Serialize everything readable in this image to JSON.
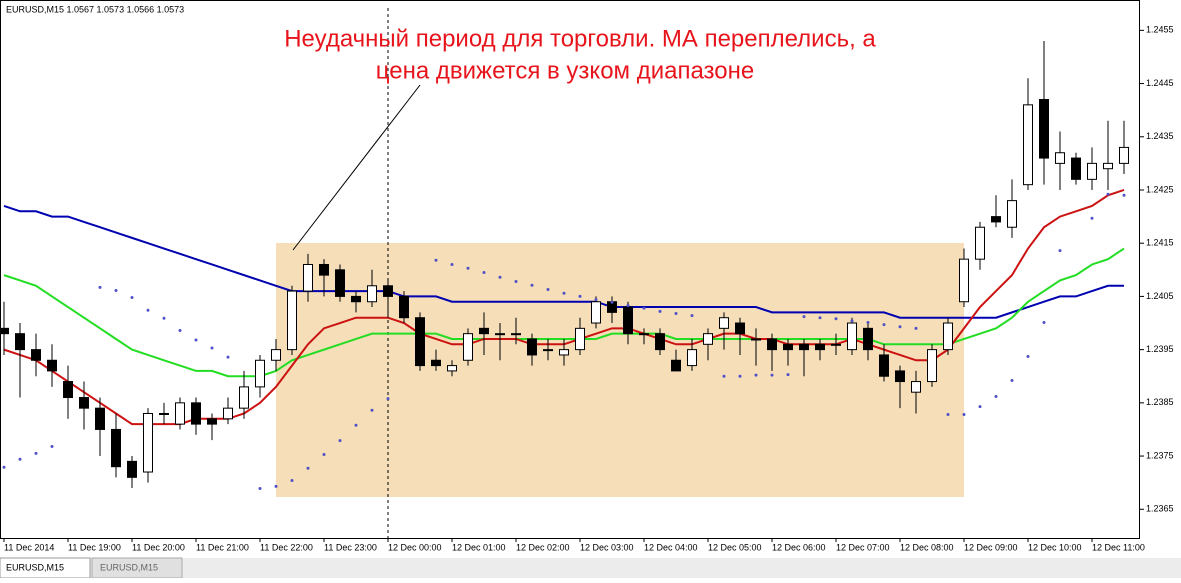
{
  "header": {
    "symbol_info": "EURUSD,M15  1.0567 1.0573 1.0566 1.0573"
  },
  "tabs": [
    "EURUSD,M15",
    "EURUSD,M15"
  ],
  "chart_data": {
    "type": "candlestick",
    "annotation": [
      "Неудачный период для торговли. МА переплелись, а",
      "цена движется в узком диапазоне"
    ],
    "categories": [
      "11 Dec 2014",
      null,
      null,
      null,
      "11 Dec 19:00",
      null,
      null,
      null,
      "11 Dec 20:00",
      null,
      null,
      null,
      "11 Dec 21:00",
      null,
      null,
      null,
      "11 Dec 22:00",
      null,
      null,
      null,
      "11 Dec 23:00",
      null,
      null,
      null,
      "12 Dec 00:00",
      null,
      null,
      null,
      "12 Dec 01:00",
      null,
      null,
      null,
      "12 Dec 02:00",
      null,
      null,
      null,
      "12 Dec 03:00",
      null,
      null,
      null,
      "12 Dec 04:00",
      null,
      null,
      null,
      "12 Dec 05:00",
      null,
      null,
      null,
      "12 Dec 06:00",
      null,
      null,
      null,
      "12 Dec 07:00",
      null,
      null,
      null,
      "12 Dec 08:00",
      null,
      null,
      null,
      "12 Dec 09:00",
      null,
      null,
      null,
      "12 Dec 10:00",
      null,
      null,
      null,
      "12 Dec 11:00",
      null,
      null
    ],
    "open": [
      1.2399,
      1.2398,
      1.2395,
      1.2393,
      1.2389,
      1.2386,
      1.2384,
      1.238,
      1.2374,
      1.2372,
      1.2383,
      1.2381,
      1.2385,
      1.2382,
      1.2382,
      1.2384,
      1.2388,
      1.2393,
      1.2395,
      1.2406,
      1.2411,
      1.241,
      1.2405,
      1.2404,
      1.2407,
      1.2405,
      1.2401,
      1.2393,
      1.2391,
      1.2393,
      1.2399,
      1.2398,
      1.2398,
      1.2397,
      1.2395,
      1.2394,
      1.2395,
      1.24,
      1.2404,
      1.2403,
      1.2398,
      1.2398,
      1.2393,
      1.2392,
      1.2396,
      1.2399,
      1.24,
      1.2397,
      1.2397,
      1.2396,
      1.2396,
      1.2396,
      1.2396,
      1.2395,
      1.2399,
      1.2394,
      1.2391,
      1.2387,
      1.2389,
      1.2395,
      1.2404,
      1.2412,
      1.242,
      1.2418,
      1.2426,
      1.2442,
      1.243,
      1.2431,
      1.2427,
      1.2429,
      1.243
    ],
    "high": [
      1.2404,
      1.24,
      1.2398,
      1.2396,
      1.2392,
      1.2389,
      1.2386,
      1.2383,
      1.2375,
      1.2384,
      1.2385,
      1.2386,
      1.2386,
      1.2383,
      1.2386,
      1.2391,
      1.2394,
      1.2397,
      1.2407,
      1.2413,
      1.2412,
      1.2411,
      1.2406,
      1.241,
      1.2408,
      1.2406,
      1.2402,
      1.2395,
      1.2393,
      1.2399,
      1.2402,
      1.24,
      1.2401,
      1.2398,
      1.2397,
      1.2397,
      1.2401,
      1.2405,
      1.2405,
      1.2404,
      1.2399,
      1.2399,
      1.2395,
      1.2397,
      1.2399,
      1.2402,
      1.2401,
      1.2399,
      1.2398,
      1.2397,
      1.2397,
      1.2397,
      1.2398,
      1.2401,
      1.24,
      1.2396,
      1.2392,
      1.2391,
      1.2396,
      1.2401,
      1.2414,
      1.2419,
      1.2424,
      1.2427,
      1.2446,
      1.2453,
      1.2436,
      1.2432,
      1.2433,
      1.2438,
      1.2438
    ],
    "low": [
      1.2394,
      1.2386,
      1.239,
      1.2388,
      1.2382,
      1.238,
      1.2375,
      1.2371,
      1.2369,
      1.237,
      1.2381,
      1.238,
      1.2379,
      1.2378,
      1.2381,
      1.2382,
      1.2386,
      1.2391,
      1.2394,
      1.2404,
      1.2405,
      1.2404,
      1.2402,
      1.2403,
      1.2401,
      1.24,
      1.2391,
      1.2391,
      1.239,
      1.2392,
      1.2394,
      1.2393,
      1.2396,
      1.2392,
      1.2393,
      1.2392,
      1.2394,
      1.2399,
      1.24,
      1.2396,
      1.2396,
      1.2394,
      1.2391,
      1.2391,
      1.2393,
      1.2395,
      1.2394,
      1.2392,
      1.2391,
      1.2392,
      1.239,
      1.2393,
      1.2394,
      1.2394,
      1.2393,
      1.2389,
      1.2384,
      1.2383,
      1.2388,
      1.2394,
      1.2403,
      1.241,
      1.2418,
      1.2416,
      1.2425,
      1.2426,
      1.2425,
      1.2426,
      1.2425,
      1.2425,
      1.2428
    ],
    "close": [
      1.2398,
      1.2395,
      1.2393,
      1.2391,
      1.2386,
      1.2384,
      1.238,
      1.2373,
      1.2371,
      1.2383,
      1.2383,
      1.2385,
      1.2381,
      1.2381,
      1.2384,
      1.2388,
      1.2393,
      1.2395,
      1.2406,
      1.2411,
      1.2409,
      1.2405,
      1.2404,
      1.2407,
      1.2405,
      1.2401,
      1.2392,
      1.2392,
      1.2392,
      1.2398,
      1.2398,
      1.2398,
      1.2398,
      1.2394,
      1.2395,
      1.2395,
      1.2399,
      1.2404,
      1.2402,
      1.2398,
      1.2398,
      1.2395,
      1.2391,
      1.2395,
      1.2398,
      1.2401,
      1.2398,
      1.2397,
      1.2395,
      1.2395,
      1.2395,
      1.2395,
      1.2396,
      1.24,
      1.2395,
      1.239,
      1.2389,
      1.2389,
      1.2395,
      1.24,
      1.2412,
      1.2418,
      1.2419,
      1.2423,
      1.2441,
      1.2431,
      1.2432,
      1.2427,
      1.243,
      1.243,
      1.2433
    ],
    "lines": [
      {
        "color": "#0000b0",
        "values": [
          1.2422,
          1.2421,
          1.2421,
          1.242,
          1.242,
          1.2419,
          1.2418,
          1.2417,
          1.2416,
          1.2415,
          1.2414,
          1.2413,
          1.2412,
          1.2411,
          1.241,
          1.2409,
          1.2408,
          1.2407,
          1.2406,
          1.2406,
          1.2406,
          1.2406,
          1.2406,
          1.2406,
          1.2406,
          1.2405,
          1.2405,
          1.2405,
          1.2404,
          1.2404,
          1.2404,
          1.2404,
          1.2404,
          1.2404,
          1.2404,
          1.2404,
          1.2404,
          1.2404,
          1.2403,
          1.2403,
          1.2403,
          1.2403,
          1.2403,
          1.2403,
          1.2403,
          1.2403,
          1.2403,
          1.2403,
          1.2402,
          1.2402,
          1.2402,
          1.2402,
          1.2402,
          1.2402,
          1.2402,
          1.2402,
          1.2401,
          1.2401,
          1.2401,
          1.2401,
          1.2401,
          1.2401,
          1.2401,
          1.2402,
          1.2403,
          1.2404,
          1.2405,
          1.2405,
          1.2406,
          1.2407,
          1.2407
        ]
      },
      {
        "color": "#22dd22",
        "values": [
          1.2409,
          1.2408,
          1.2407,
          1.2405,
          1.2403,
          1.2401,
          1.2399,
          1.2397,
          1.2395,
          1.2394,
          1.2393,
          1.2392,
          1.2391,
          1.2391,
          1.239,
          1.239,
          1.239,
          1.2391,
          1.2393,
          1.2394,
          1.2395,
          1.2396,
          1.2397,
          1.2398,
          1.2398,
          1.2398,
          1.2398,
          1.2398,
          1.2397,
          1.2397,
          1.2397,
          1.2397,
          1.2397,
          1.2397,
          1.2397,
          1.2397,
          1.2397,
          1.2397,
          1.2398,
          1.2398,
          1.2398,
          1.2398,
          1.2397,
          1.2397,
          1.2397,
          1.2397,
          1.2397,
          1.2397,
          1.2397,
          1.2397,
          1.2397,
          1.2397,
          1.2397,
          1.2397,
          1.2397,
          1.2396,
          1.2396,
          1.2396,
          1.2396,
          1.2396,
          1.2397,
          1.2398,
          1.2399,
          1.2401,
          1.2404,
          1.2406,
          1.2408,
          1.2409,
          1.2411,
          1.2412,
          1.2414
        ]
      },
      {
        "color": "#cc1111",
        "values": [
          1.2395,
          1.2394,
          1.2393,
          1.2391,
          1.2389,
          1.2387,
          1.2385,
          1.2383,
          1.2381,
          1.2381,
          1.2381,
          1.2381,
          1.2382,
          1.2382,
          1.2382,
          1.2383,
          1.2385,
          1.2388,
          1.2392,
          1.2396,
          1.2399,
          1.24,
          1.2401,
          1.2401,
          1.2401,
          1.24,
          1.2398,
          1.2397,
          1.2396,
          1.2396,
          1.2397,
          1.2397,
          1.2397,
          1.2396,
          1.2396,
          1.2396,
          1.2397,
          1.2398,
          1.2399,
          1.2399,
          1.2398,
          1.2397,
          1.2396,
          1.2396,
          1.2397,
          1.2398,
          1.2398,
          1.2397,
          1.2397,
          1.2396,
          1.2396,
          1.2396,
          1.2396,
          1.2397,
          1.2396,
          1.2395,
          1.2394,
          1.2393,
          1.2393,
          1.2395,
          1.2399,
          1.2403,
          1.2406,
          1.2409,
          1.2414,
          1.2418,
          1.242,
          1.2421,
          1.2422,
          1.2424,
          1.2425
        ]
      }
    ],
    "sar": {
      "color": "#5050c8",
      "values": [
        1.23729,
        1.23744,
        1.23755,
        1.23768,
        null,
        null,
        1.24067,
        1.24061,
        1.24048,
        1.24024,
        1.24009,
        1.23986,
        1.23968,
        1.23953,
        1.23936,
        null,
        1.23689,
        1.23693,
        1.23704,
        1.23727,
        1.23753,
        1.23779,
        1.23808,
        1.23836,
        1.23858,
        null,
        null,
        1.24118,
        1.2411,
        1.24103,
        1.24095,
        1.24086,
        1.24078,
        1.24071,
        1.24063,
        1.24056,
        1.2405,
        1.24044,
        1.24039,
        1.24033,
        1.24028,
        1.24022,
        1.24018,
        1.24014,
        null,
        1.239,
        1.239,
        1.23902,
        1.23902,
        1.23903,
        1.24012,
        1.2401,
        1.24008,
        1.24004,
        1.24001,
        1.23997,
        1.23993,
        1.2399,
        null,
        1.23828,
        1.23828,
        1.23843,
        1.23862,
        1.23892,
        1.23937,
        1.24001,
        1.24136,
        null,
        1.24197,
        1.24242,
        1.2424
      ]
    },
    "ylim": [
      1.23596,
      1.24592
    ],
    "yticks": [
      1.2455,
      1.2445,
      1.2435,
      1.2425,
      1.2415,
      1.2405,
      1.2395,
      1.2385,
      1.2375,
      1.2365
    ]
  }
}
